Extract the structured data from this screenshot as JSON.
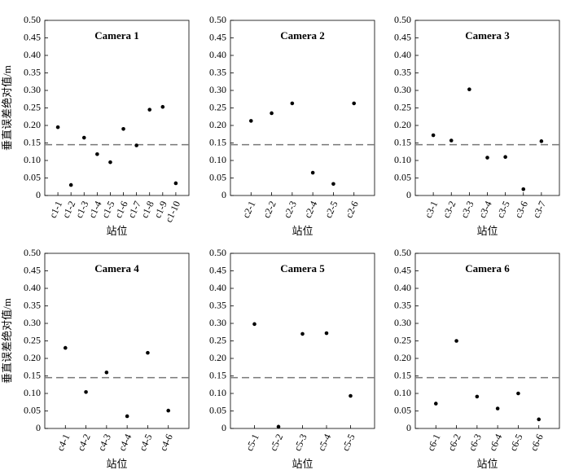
{
  "chart_data": [
    {
      "type": "scatter",
      "title": "Camera 1",
      "ylabel": "垂直误差绝对值/m",
      "xlabel": "站位",
      "categories": [
        "c1-1",
        "c1-2",
        "c1-3",
        "c1-4",
        "c1-5",
        "c1-6",
        "c1-7",
        "c1-8",
        "c1-9",
        "c1-10"
      ],
      "values": [
        0.195,
        0.03,
        0.165,
        0.118,
        0.095,
        0.19,
        0.143,
        0.245,
        0.253,
        0.035
      ],
      "color": "#000000",
      "reference_line": 0.145,
      "ylim": [
        0,
        0.5
      ],
      "yticks": [
        0,
        0.05,
        {
          "value": 0.1,
          "label": "0.10"
        },
        0.15,
        {
          "value": 0.2,
          "label": "0.20"
        },
        0.25,
        {
          "value": 0.3,
          "label": "0.30"
        },
        0.35,
        {
          "value": 0.4,
          "label": "0.40"
        },
        0.45,
        {
          "value": 0.5,
          "label": "0.50"
        }
      ]
    },
    {
      "type": "scatter",
      "title": "Camera 2",
      "xlabel": "站位",
      "categories": [
        "c2-1",
        "c2-2",
        "c2-3",
        "c2-4",
        "c2-5",
        "c2-6"
      ],
      "values": [
        0.213,
        0.235,
        0.263,
        0.065,
        0.033,
        0.263
      ],
      "color": "#000000",
      "reference_line": 0.145,
      "ylim": [
        0,
        0.5
      ],
      "yticks": [
        0,
        0.05,
        {
          "value": 0.1,
          "label": "0.10"
        },
        0.15,
        {
          "value": 0.2,
          "label": "0.20"
        },
        0.25,
        {
          "value": 0.3,
          "label": "0.30"
        },
        0.35,
        {
          "value": 0.4,
          "label": "0.40"
        },
        0.45,
        {
          "value": 0.5,
          "label": "0.50"
        }
      ]
    },
    {
      "type": "scatter",
      "title": "Camera 3",
      "xlabel": "站位",
      "categories": [
        "c3-1",
        "c3-2",
        "c3-3",
        "c3-4",
        "c3-5",
        "c3-6",
        "c3-7"
      ],
      "values": [
        0.172,
        0.157,
        0.303,
        0.108,
        0.11,
        0.018,
        0.155
      ],
      "color": "#000000",
      "reference_line": 0.145,
      "ylim": [
        0,
        0.5
      ],
      "yticks": [
        0,
        0.05,
        {
          "value": 0.1,
          "label": "0.10"
        },
        0.15,
        {
          "value": 0.2,
          "label": "0.20"
        },
        0.25,
        {
          "value": 0.3,
          "label": "0.30"
        },
        0.35,
        {
          "value": 0.4,
          "label": "0.40"
        },
        0.45,
        {
          "value": 0.5,
          "label": "0.50"
        }
      ]
    },
    {
      "type": "scatter",
      "title": "Camera 4",
      "ylabel": "垂直误差绝对值/m",
      "xlabel": "站位",
      "categories": [
        "c4-1",
        "c4-2",
        "c4-3",
        "c4-4",
        "c4-5",
        "c4-6"
      ],
      "values": [
        0.23,
        0.104,
        0.16,
        0.035,
        0.216,
        0.051
      ],
      "color": "#000000",
      "reference_line": 0.145,
      "ylim": [
        0,
        0.5
      ],
      "yticks": [
        0,
        0.05,
        {
          "value": 0.1,
          "label": "0.10"
        },
        0.15,
        {
          "value": 0.2,
          "label": "0.20"
        },
        0.25,
        {
          "value": 0.3,
          "label": "0.30"
        },
        0.35,
        {
          "value": 0.4,
          "label": "0.40"
        },
        0.45,
        {
          "value": 0.5,
          "label": "0.50"
        }
      ]
    },
    {
      "type": "scatter",
      "title": "Camera 5",
      "xlabel": "站位",
      "categories": [
        "c5-1",
        "c5-2",
        "c5-3",
        "c5-4",
        "c5-5"
      ],
      "values": [
        0.298,
        0.005,
        0.27,
        0.272,
        0.093
      ],
      "color": "#000000",
      "reference_line": 0.145,
      "ylim": [
        0,
        0.5
      ],
      "yticks": [
        0,
        0.05,
        {
          "value": 0.1,
          "label": "0.10"
        },
        0.15,
        {
          "value": 0.2,
          "label": "0.20"
        },
        0.25,
        {
          "value": 0.3,
          "label": "0.30"
        },
        0.35,
        {
          "value": 0.4,
          "label": "0.40"
        },
        0.45,
        {
          "value": 0.5,
          "label": "0.50"
        }
      ]
    },
    {
      "type": "scatter",
      "title": "Camera 6",
      "xlabel": "站位",
      "categories": [
        "c6-1",
        "c6-2",
        "c6-3",
        "c6-4",
        "c6-5",
        "c6-6"
      ],
      "values": [
        0.071,
        0.25,
        0.091,
        0.057,
        0.1,
        0.026
      ],
      "color": "#000000",
      "reference_line": 0.145,
      "ylim": [
        0,
        0.5
      ],
      "yticks": [
        0,
        0.05,
        {
          "value": 0.1,
          "label": "0.10"
        },
        0.15,
        {
          "value": 0.2,
          "label": "0.20"
        },
        0.25,
        {
          "value": 0.3,
          "label": "0.30"
        },
        0.35,
        {
          "value": 0.4,
          "label": "0.40"
        },
        0.45,
        {
          "value": 0.5,
          "label": "0.50"
        }
      ]
    }
  ]
}
